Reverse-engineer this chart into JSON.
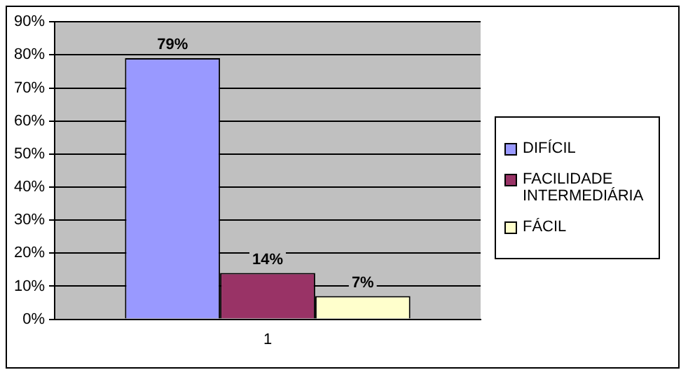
{
  "chart_data": {
    "type": "bar",
    "categories": [
      "1"
    ],
    "series": [
      {
        "name": "DIFÍCIL",
        "color": "#9999ff",
        "values": [
          79
        ],
        "value_labels": [
          "79%"
        ]
      },
      {
        "name": "FACILIDADE INTERMEDIÁRIA",
        "color": "#993366",
        "values": [
          14
        ],
        "value_labels": [
          "14%"
        ]
      },
      {
        "name": "FÁCIL",
        "color": "#ffffcc",
        "values": [
          7
        ],
        "value_labels": [
          "7%"
        ]
      }
    ],
    "ylim": [
      0,
      90
    ],
    "yticks": [
      {
        "value": 0,
        "label": "0%"
      },
      {
        "value": 10,
        "label": "10%"
      },
      {
        "value": 20,
        "label": "20%"
      },
      {
        "value": 30,
        "label": "30%"
      },
      {
        "value": 40,
        "label": "40%"
      },
      {
        "value": 50,
        "label": "50%"
      },
      {
        "value": 60,
        "label": "60%"
      },
      {
        "value": 70,
        "label": "70%"
      },
      {
        "value": 80,
        "label": "80%"
      },
      {
        "value": 90,
        "label": "90%"
      }
    ],
    "grid": "y",
    "legend": "right"
  }
}
